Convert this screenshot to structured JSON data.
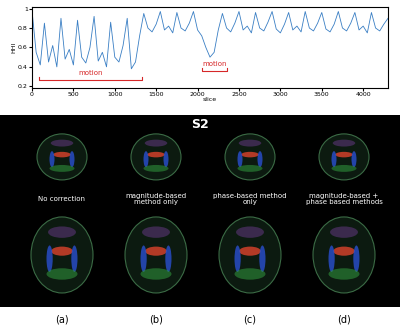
{
  "chart_data": {
    "type": "line",
    "x_label": "slice",
    "y_label": "HHI",
    "x": [
      0,
      50,
      100,
      150,
      200,
      250,
      300,
      350,
      400,
      450,
      500,
      550,
      600,
      650,
      700,
      750,
      800,
      850,
      900,
      950,
      1000,
      1050,
      1100,
      1150,
      1200,
      1250,
      1300,
      1350,
      1400,
      1450,
      1500,
      1550,
      1600,
      1650,
      1700,
      1750,
      1800,
      1850,
      1900,
      1950,
      2000,
      2050,
      2100,
      2150,
      2200,
      2250,
      2300,
      2350,
      2400,
      2450,
      2500,
      2550,
      2600,
      2650,
      2700,
      2750,
      2800,
      2850,
      2900,
      2950,
      3000,
      3050,
      3100,
      3150,
      3200,
      3250,
      3300,
      3350,
      3400,
      3450,
      3500,
      3550,
      3600,
      3650,
      3700,
      3750,
      3800,
      3850,
      3900,
      3950,
      4000,
      4050,
      4100,
      4150,
      4200,
      4250,
      4300
    ],
    "values": [
      0.98,
      0.55,
      0.42,
      0.85,
      0.45,
      0.62,
      0.4,
      0.9,
      0.48,
      0.58,
      0.42,
      0.88,
      0.5,
      0.44,
      0.6,
      0.92,
      0.46,
      0.55,
      0.4,
      0.86,
      0.5,
      0.45,
      0.62,
      0.9,
      0.38,
      0.45,
      0.72,
      0.95,
      0.8,
      0.76,
      0.84,
      0.97,
      0.78,
      0.82,
      0.75,
      0.96,
      0.8,
      0.77,
      0.85,
      0.97,
      0.78,
      0.72,
      0.6,
      0.5,
      0.55,
      0.78,
      0.95,
      0.8,
      0.76,
      0.85,
      0.97,
      0.78,
      0.82,
      0.75,
      0.96,
      0.8,
      0.77,
      0.86,
      0.97,
      0.79,
      0.75,
      0.84,
      0.96,
      0.78,
      0.82,
      0.76,
      0.97,
      0.8,
      0.77,
      0.85,
      0.96,
      0.79,
      0.76,
      0.84,
      0.97,
      0.8,
      0.77,
      0.85,
      0.96,
      0.78,
      0.82,
      0.75,
      0.96,
      0.8,
      0.77,
      0.84,
      0.9
    ],
    "color": "#3a7fc4",
    "xlim": [
      0,
      4300
    ],
    "ylim": [
      0.18,
      1.02
    ],
    "xticks": [
      0,
      500,
      1000,
      1500,
      2000,
      2500,
      3000,
      3500,
      4000
    ],
    "yticks": [
      0.2,
      0.4,
      0.6,
      0.8,
      1
    ],
    "annotations": [
      {
        "text": "motion",
        "span": [
          80,
          1330
        ],
        "y": 0.27,
        "color": "#d62728"
      },
      {
        "text": "motion",
        "span": [
          2050,
          2350
        ],
        "y": 0.36,
        "color": "#d62728"
      }
    ]
  },
  "panel": {
    "title": "S2",
    "columns": [
      {
        "label": "No correction",
        "letter": "(a)"
      },
      {
        "label": "magnitude-based method only",
        "letter": "(b)"
      },
      {
        "label": "phase-based method only",
        "letter": "(c)"
      },
      {
        "label": "magnitude-based + phase based methods",
        "letter": "(d)"
      }
    ]
  }
}
